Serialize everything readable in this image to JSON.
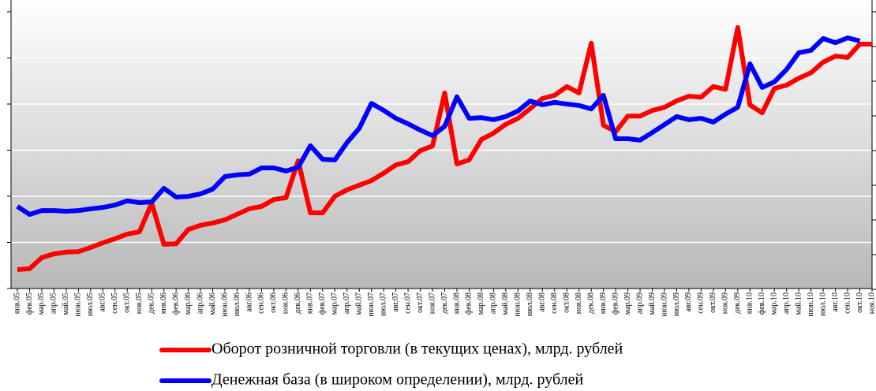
{
  "chart_data": {
    "type": "line",
    "categories": [
      "янв.05",
      "фев.05",
      "мар.05",
      "апр.05",
      "май.05",
      "июн.05",
      "июл.05",
      "авг.05",
      "сен.05",
      "окт.05",
      "ноя.05",
      "дек.05",
      "янв.06",
      "фев.06",
      "мар.06",
      "апр.06",
      "май.06",
      "июн.06",
      "июл.06",
      "авг.06",
      "сен.06",
      "окт.06",
      "ноя.06",
      "дек.06",
      "янв.07",
      "фев.07",
      "мар.07",
      "апр.07",
      "май.07",
      "июн.07",
      "июл.07",
      "авг.07",
      "сен.07",
      "окт.07",
      "ноя.07",
      "дек.07",
      "янв.08",
      "фев.08",
      "мар.08",
      "апр.08",
      "май.08",
      "июн.08",
      "июл.08",
      "авг.08",
      "сен.08",
      "окт.08",
      "ноя.08",
      "дек.08",
      "янв.09",
      "фев.09",
      "мар.09",
      "апр.09",
      "май.09",
      "июн.09",
      "июл.09",
      "авг.09",
      "сен.09",
      "окт.09",
      "ноя.09",
      "дек.09",
      "янв.10",
      "фев.10",
      "мар.10",
      "апр.10",
      "май.10",
      "июн.10",
      "июл.10",
      "авг.10",
      "сен.10",
      "окт.10",
      "ноя.10"
    ],
    "series": [
      {
        "name": "Оборот розничной торговли (в текущих ценах), млрд. рублей",
        "color": "#ff0000",
        "axis": "y",
        "values": [
          0.41,
          0.43,
          0.67,
          0.75,
          0.79,
          0.8,
          0.89,
          0.99,
          1.08,
          1.18,
          1.23,
          1.85,
          0.96,
          0.97,
          1.28,
          1.37,
          1.42,
          1.49,
          1.61,
          1.73,
          1.78,
          1.93,
          1.97,
          2.77,
          1.64,
          1.64,
          2.0,
          2.14,
          2.24,
          2.34,
          2.5,
          2.68,
          2.75,
          2.99,
          3.09,
          4.24,
          2.7,
          2.79,
          3.23,
          3.37,
          3.56,
          3.69,
          3.9,
          4.12,
          4.19,
          4.38,
          4.24,
          5.32,
          3.54,
          3.4,
          3.74,
          3.74,
          3.86,
          3.93,
          4.07,
          4.17,
          4.15,
          4.38,
          4.32,
          5.66,
          3.98,
          3.81,
          4.34,
          4.41,
          4.56,
          4.68,
          4.91,
          5.04,
          5.01,
          5.3,
          5.3
        ]
      },
      {
        "name": "Денежная база (в широком определении), млрд. рублей",
        "color": "#0000ff",
        "axis": "y2",
        "values": [
          2.39,
          2.16,
          2.27,
          2.27,
          2.25,
          2.27,
          2.32,
          2.36,
          2.43,
          2.55,
          2.5,
          2.52,
          2.91,
          2.66,
          2.68,
          2.75,
          2.89,
          3.25,
          3.3,
          3.32,
          3.5,
          3.5,
          3.41,
          3.52,
          4.14,
          3.75,
          3.73,
          4.23,
          4.64,
          5.36,
          5.16,
          4.93,
          4.77,
          4.59,
          4.43,
          4.7,
          5.55,
          4.93,
          4.95,
          4.89,
          4.98,
          5.14,
          5.43,
          5.32,
          5.39,
          5.34,
          5.3,
          5.2,
          5.59,
          4.34,
          4.34,
          4.3,
          4.52,
          4.75,
          4.98,
          4.89,
          4.93,
          4.82,
          5.05,
          5.25,
          6.5,
          5.82,
          5.98,
          6.34,
          6.82,
          6.89,
          7.23,
          7.11,
          7.25,
          7.16,
          null
        ]
      }
    ],
    "ylim": [
      0,
      6
    ],
    "yticks": [
      0,
      1,
      2,
      3,
      4,
      5,
      6
    ],
    "y2lim": [
      0,
      8
    ],
    "y2ticks": [
      0,
      1,
      2,
      3,
      4,
      5,
      6,
      7,
      8
    ],
    "grid": true
  }
}
